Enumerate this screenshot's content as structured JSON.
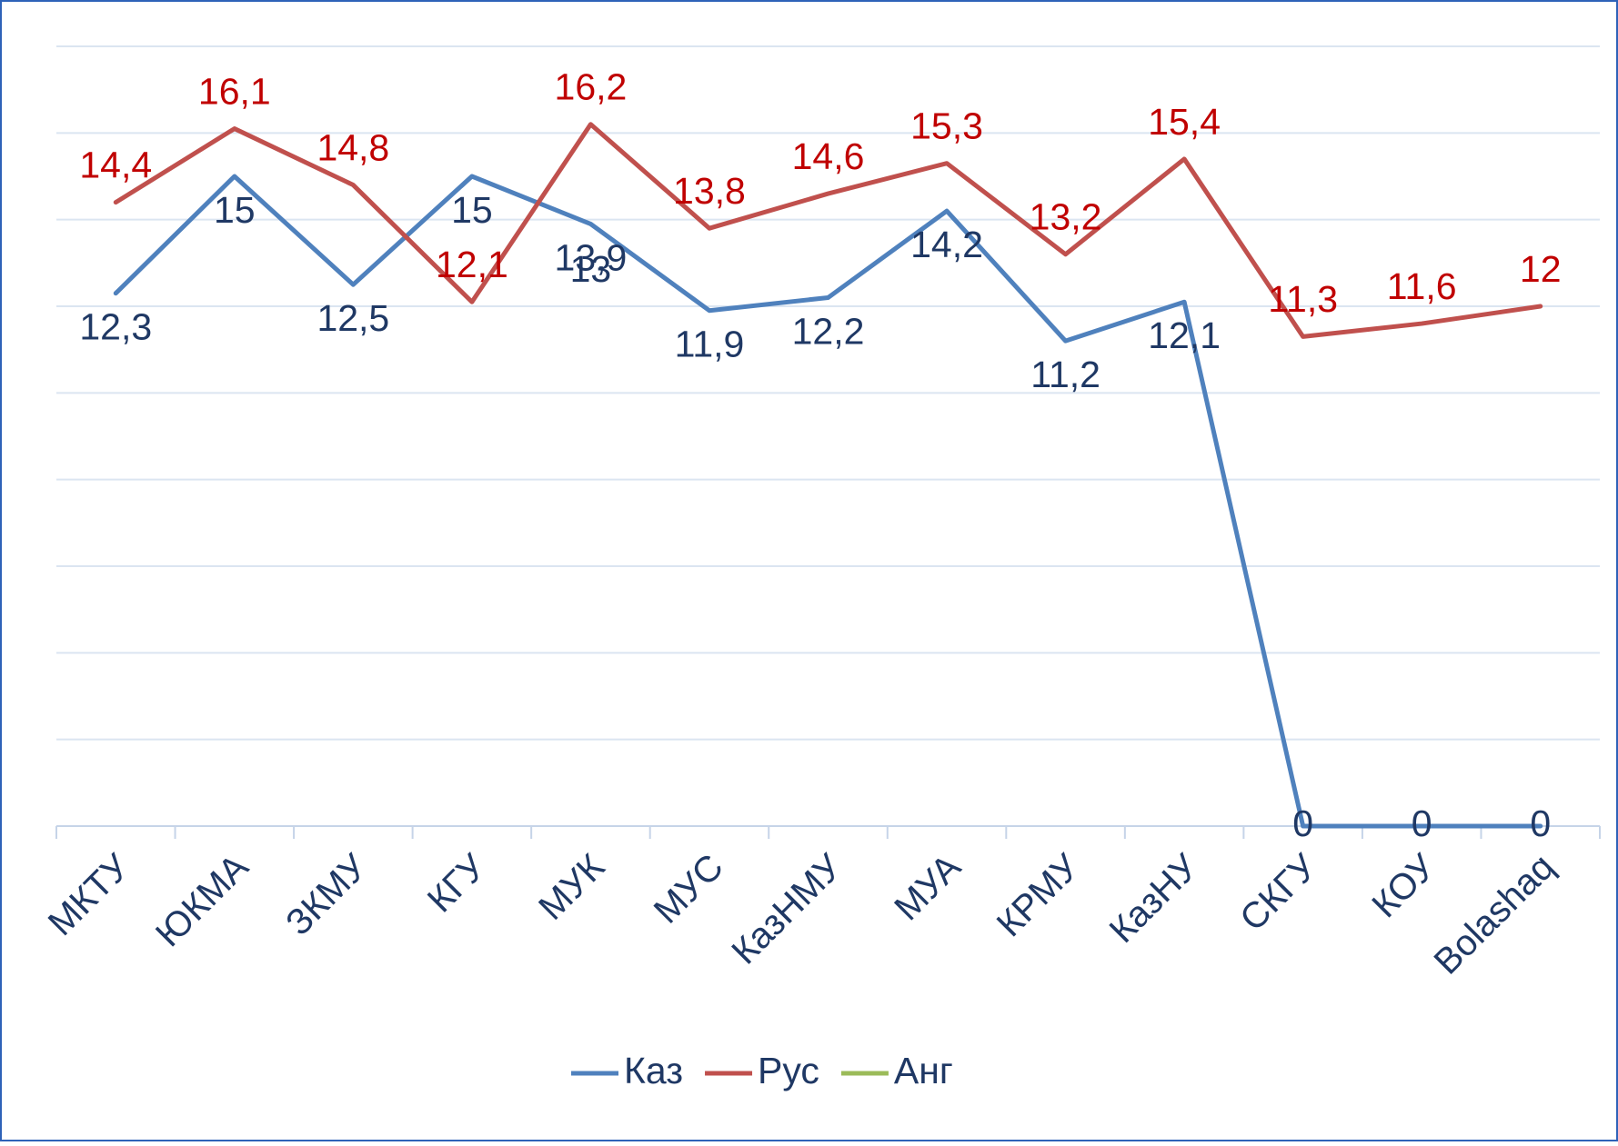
{
  "chart_data": {
    "type": "line",
    "categories": [
      "МКТУ",
      "ЮКМА",
      "ЗКМУ",
      "КГУ",
      "МУК",
      "МУС",
      "КазНМУ",
      "МУА",
      "КРМУ",
      "КазНУ",
      "СКГУ",
      "КОУ",
      "Bolashaq"
    ],
    "series": [
      {
        "name": "Каз",
        "color": "#4f81bd",
        "values": [
          12.3,
          15,
          12.5,
          15,
          13.9,
          11.9,
          12.2,
          14.2,
          11.2,
          12.1,
          0,
          0,
          0
        ],
        "value_labels": [
          "12,3",
          "15",
          "12,5",
          "15",
          "13,9",
          "11,9",
          "12,2",
          "14,2",
          "11,2",
          "12,1",
          "0",
          "0",
          "0"
        ]
      },
      {
        "name": "Рус",
        "color": "#c0504d",
        "values": [
          14.4,
          16.1,
          14.8,
          12.1,
          16.2,
          13.8,
          14.6,
          15.3,
          13.2,
          15.4,
          11.3,
          11.6,
          12
        ],
        "value_labels": [
          "14,4",
          "16,1",
          "14,8",
          "12,1",
          "16,2",
          "13,8",
          "14,6",
          "15,3",
          "13,2",
          "15,4",
          "11,3",
          "11,6",
          "12"
        ]
      },
      {
        "name": "Анг",
        "color": "#9bbb59",
        "values": [
          null,
          null,
          null,
          null,
          13,
          null,
          null,
          null,
          null,
          null,
          null,
          null,
          null
        ],
        "value_labels": [
          null,
          null,
          null,
          null,
          "13",
          null,
          null,
          null,
          null,
          null,
          null,
          null,
          null
        ]
      }
    ],
    "ylim": [
      0,
      18
    ],
    "yticks": [
      0,
      2,
      4,
      6,
      8,
      10,
      12,
      14,
      16,
      18
    ],
    "grid": true,
    "legend": "bottom"
  }
}
